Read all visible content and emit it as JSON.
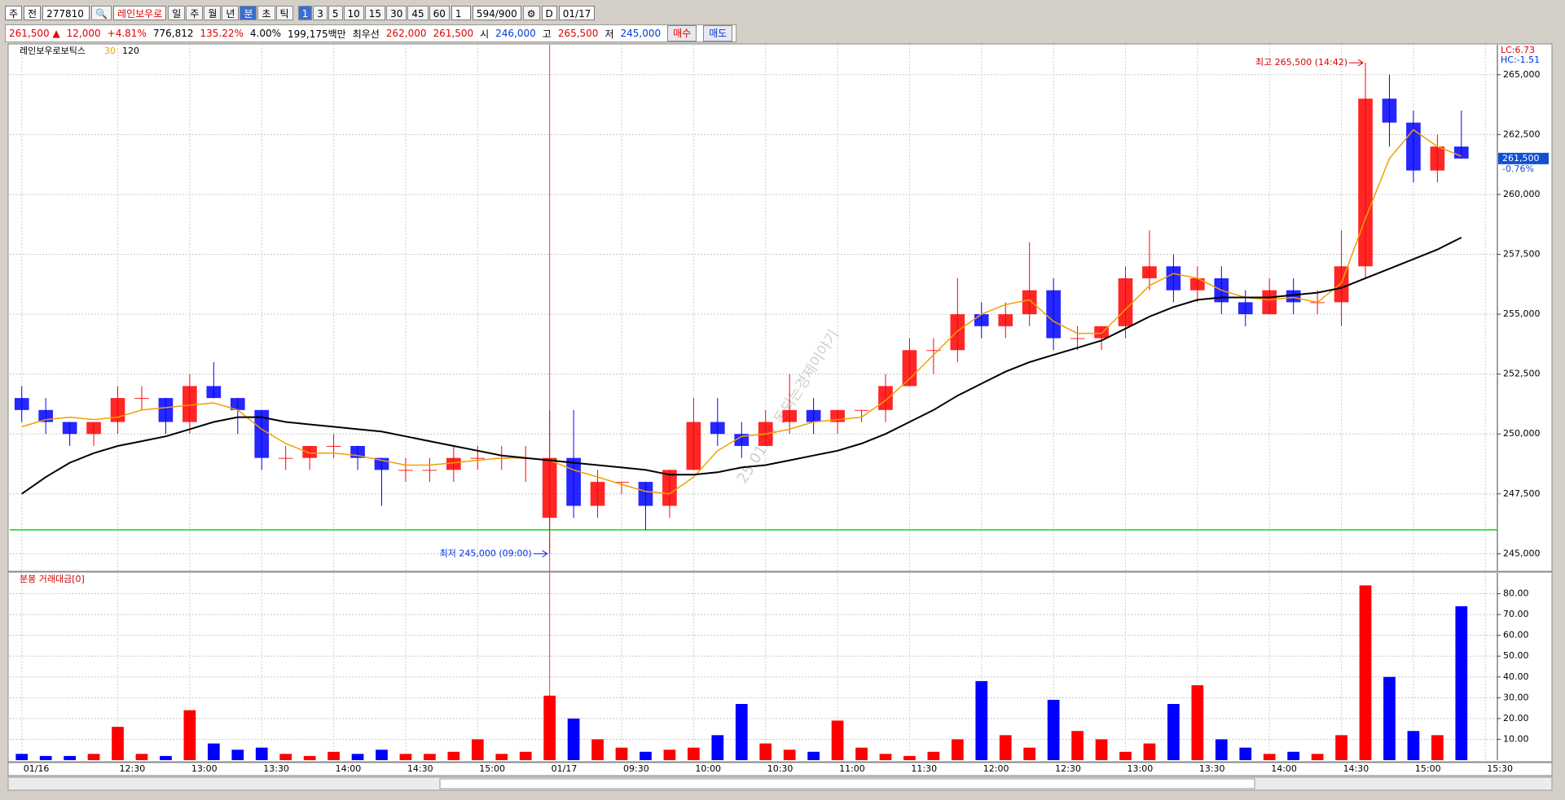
{
  "toolbar": {
    "market": "주",
    "scope": "전",
    "code": "277810",
    "name": "레인보우로",
    "periods": [
      "일",
      "주",
      "월",
      "년",
      "분",
      "초",
      "틱"
    ],
    "intervals": [
      "1",
      "3",
      "5",
      "10",
      "15",
      "30",
      "45",
      "60"
    ],
    "multiplier": "1",
    "count": "594/900",
    "d_label": "D",
    "date": "01/17"
  },
  "quote": {
    "price": "261,500 ▲",
    "change": "12,000",
    "change_pct": "+4.81%",
    "volume": "776,812",
    "volume_ratio": "135.22%",
    "turnover": "4.00%",
    "amount": "199,175백만",
    "best_label": "최우선",
    "best_ask": "262,000",
    "best_bid": "261,500",
    "open_label": "시",
    "open": "246,000",
    "high_label": "고",
    "high": "265,500",
    "low_label": "저",
    "low": "245,000",
    "buy": "매수",
    "sell": "매도"
  },
  "chart_data": [
    {
      "type": "candlestick",
      "title": "레인보우로보틱스",
      "categories": [
        "01/16",
        null,
        null,
        null,
        "12:30",
        null,
        null,
        "13:00",
        null,
        null,
        "13:30",
        null,
        null,
        "14:00",
        null,
        null,
        "14:30",
        null,
        null,
        "15:00",
        null,
        null,
        "01/17",
        null,
        null,
        "09:30",
        null,
        null,
        "10:00",
        null,
        null,
        "10:30",
        null,
        null,
        "11:00",
        null,
        null,
        "11:30",
        null,
        null,
        "12:00",
        null,
        null,
        "12:30",
        null,
        null,
        "13:00",
        null,
        null,
        "13:30",
        null,
        null,
        "14:00",
        null,
        null,
        "14:30",
        null,
        null,
        "15:00",
        null,
        null,
        "15:30"
      ],
      "ohlc": [
        [
          251500,
          252000,
          250500,
          251000
        ],
        [
          251000,
          251500,
          250000,
          250500
        ],
        [
          250500,
          250500,
          249500,
          250000
        ],
        [
          250000,
          250500,
          249500,
          250500
        ],
        [
          250500,
          252000,
          250000,
          251500
        ],
        [
          251500,
          252000,
          251000,
          251500
        ],
        [
          251500,
          251500,
          250000,
          250500
        ],
        [
          250500,
          252500,
          250000,
          252000
        ],
        [
          252000,
          253000,
          251500,
          251500
        ],
        [
          251500,
          251500,
          250000,
          251000
        ],
        [
          251000,
          251000,
          248500,
          249000
        ],
        [
          249000,
          249500,
          248500,
          249000
        ],
        [
          249000,
          249500,
          248500,
          249500
        ],
        [
          249500,
          250000,
          249000,
          249500
        ],
        [
          249500,
          249500,
          248500,
          249000
        ],
        [
          249000,
          249000,
          247000,
          248500
        ],
        [
          248500,
          249000,
          248000,
          248500
        ],
        [
          248500,
          249000,
          248000,
          248500
        ],
        [
          248500,
          249500,
          248000,
          249000
        ],
        [
          249000,
          249500,
          248500,
          249000
        ],
        [
          249000,
          249500,
          248500,
          249000
        ],
        [
          249000,
          249500,
          248000,
          249000
        ],
        [
          246500,
          251000,
          245000,
          249000
        ],
        [
          249000,
          251000,
          246500,
          247000
        ],
        [
          247000,
          248500,
          246500,
          248000
        ],
        [
          248000,
          248000,
          247500,
          248000
        ],
        [
          248000,
          248000,
          246000,
          247000
        ],
        [
          247000,
          248500,
          246500,
          248500
        ],
        [
          248500,
          251500,
          248500,
          250500
        ],
        [
          250500,
          251500,
          249500,
          250000
        ],
        [
          250000,
          250500,
          249000,
          249500
        ],
        [
          249500,
          251000,
          249500,
          250500
        ],
        [
          250500,
          252500,
          250000,
          251000
        ],
        [
          251000,
          251500,
          250000,
          250500
        ],
        [
          250500,
          251000,
          250000,
          251000
        ],
        [
          251000,
          251000,
          250500,
          251000
        ],
        [
          251000,
          252500,
          250500,
          252000
        ],
        [
          252000,
          254000,
          252000,
          253500
        ],
        [
          253500,
          254000,
          252500,
          253500
        ],
        [
          253500,
          256500,
          253000,
          255000
        ],
        [
          255000,
          255500,
          254000,
          254500
        ],
        [
          254500,
          255500,
          254000,
          255000
        ],
        [
          255000,
          258000,
          254500,
          256000
        ],
        [
          256000,
          256500,
          253500,
          254000
        ],
        [
          254000,
          254500,
          253500,
          254000
        ],
        [
          254000,
          254500,
          253500,
          254500
        ],
        [
          254500,
          257000,
          254000,
          256500
        ],
        [
          256500,
          258500,
          256000,
          257000
        ],
        [
          257000,
          257500,
          255500,
          256000
        ],
        [
          256000,
          257000,
          255500,
          256500
        ],
        [
          256500,
          257000,
          255000,
          255500
        ],
        [
          255500,
          256000,
          254500,
          255000
        ],
        [
          255000,
          256500,
          255000,
          256000
        ],
        [
          256000,
          256500,
          255000,
          255500
        ],
        [
          255500,
          256000,
          255000,
          255500
        ],
        [
          255500,
          258500,
          254500,
          257000
        ],
        [
          257000,
          265500,
          256500,
          264000
        ],
        [
          264000,
          265000,
          262000,
          263000
        ],
        [
          263000,
          263500,
          260500,
          261000
        ],
        [
          261000,
          262500,
          260500,
          262000
        ],
        [
          262000,
          263500,
          261500,
          261500
        ],
        null
      ],
      "up_color": "#ff0000",
      "down_color": "#0000ff",
      "series": [
        {
          "name": "30",
          "color": "#f0a000",
          "values": [
            250300,
            250600,
            250700,
            250600,
            250700,
            251000,
            251100,
            251200,
            251300,
            251000,
            250200,
            249600,
            249200,
            249200,
            249100,
            248900,
            248700,
            248700,
            248800,
            248900,
            249000,
            249000,
            248900,
            248500,
            248200,
            247900,
            247600,
            247500,
            248200,
            249300,
            249900,
            250000,
            250200,
            250500,
            250600,
            250700,
            251400,
            252300,
            253300,
            254300,
            255000,
            255400,
            255600,
            254700,
            254200,
            254200,
            255200,
            256200,
            256700,
            256500,
            256000,
            255700,
            255600,
            255700,
            255500,
            256300,
            259000,
            261500,
            262700,
            262000,
            261600,
            null
          ]
        },
        {
          "name": "120",
          "color": "#000000",
          "values": [
            247500,
            248200,
            248800,
            249200,
            249500,
            249700,
            249900,
            250200,
            250500,
            250700,
            250700,
            250500,
            250400,
            250300,
            250200,
            250100,
            249900,
            249700,
            249500,
            249300,
            249100,
            249000,
            248900,
            248800,
            248700,
            248600,
            248500,
            248300,
            248300,
            248400,
            248600,
            248700,
            248900,
            249100,
            249300,
            249600,
            250000,
            250500,
            251000,
            251600,
            252100,
            252600,
            253000,
            253300,
            253600,
            253900,
            254400,
            254900,
            255300,
            255600,
            255700,
            255700,
            255700,
            255800,
            255900,
            256100,
            256500,
            256900,
            257300,
            257700,
            258200,
            null
          ]
        }
      ],
      "ylim": [
        244300,
        266250
      ],
      "yticks": [
        {
          "value": 245000,
          "label": "245,000"
        },
        {
          "value": 247500,
          "label": "247,500"
        },
        {
          "value": 250000,
          "label": "250,000"
        },
        {
          "value": 252500,
          "label": "252,500"
        },
        {
          "value": 255000,
          "label": "255,000"
        },
        {
          "value": 257500,
          "label": "257,500"
        },
        {
          "value": 260000,
          "label": "260,000"
        },
        {
          "value": 262500,
          "label": "262,500"
        },
        {
          "value": 265000,
          "label": "265,000"
        }
      ],
      "grid": true,
      "hline": {
        "value": 246000,
        "color": "#00dd00"
      },
      "high_label": "최고 265,500 (14:42)",
      "low_label": "최저 245,000 (09:00)",
      "lc_label": "LC:6.73",
      "hc_label": "HC:-1.51",
      "last_label": "261,500",
      "last_change": "-0.76%",
      "watermark": "25.01.17 돈되는경제이야기"
    },
    {
      "type": "bar",
      "title": "분봉 거래대금[0]",
      "values": [
        3,
        2,
        2,
        3,
        16,
        3,
        2,
        24,
        8,
        5,
        6,
        3,
        2,
        4,
        3,
        5,
        3,
        3,
        4,
        10,
        3,
        4,
        31,
        20,
        10,
        6,
        4,
        5,
        6,
        12,
        27,
        8,
        5,
        4,
        19,
        6,
        3,
        2,
        4,
        10,
        38,
        12,
        6,
        29,
        14,
        10,
        4,
        8,
        27,
        36,
        10,
        6,
        3,
        4,
        3,
        12,
        84,
        40,
        14,
        12,
        74,
        null
      ],
      "up_color": "#ff0000",
      "down_color": "#0000ff",
      "ylim": [
        0,
        90
      ],
      "yticks": [
        {
          "value": 10,
          "label": "10.00"
        },
        {
          "value": 20,
          "label": "20.00"
        },
        {
          "value": 30,
          "label": "30.00"
        },
        {
          "value": 40,
          "label": "40.00"
        },
        {
          "value": 50,
          "label": "50.00"
        },
        {
          "value": 60,
          "label": "60.00"
        },
        {
          "value": 70,
          "label": "70.00"
        },
        {
          "value": 80,
          "label": "80.00"
        }
      ],
      "grid": true
    }
  ]
}
